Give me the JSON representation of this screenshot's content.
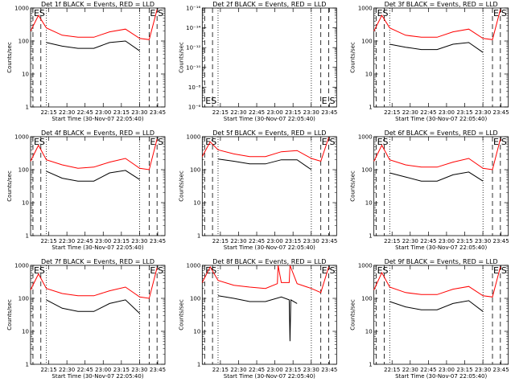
{
  "figure": {
    "xlabel": "Start Time (30-Nov-07 22:05:40)",
    "ylabel": "Counts/sec",
    "colors": {
      "events": "#000000",
      "lld": "#ff0000",
      "axes": "#000000",
      "background": "#ffffff"
    }
  },
  "chart_data": [
    {
      "type": "line",
      "title": "Det 1f BLACK = Events, RED = LLD",
      "scale": "log",
      "ylim": [
        1,
        1000
      ],
      "yticks": [
        "1",
        "10",
        "100",
        "1000"
      ],
      "xticks": [
        "22:15",
        "22:30",
        "22:45",
        "23:00",
        "23:15",
        "23:30",
        "23:45"
      ],
      "xlim": [
        22.1,
        23.8
      ],
      "dash_lines": [
        22.13,
        22.23,
        23.6,
        23.7
      ],
      "dot_lines": [
        22.3,
        23.48
      ],
      "markers": [
        {
          "label": "ES",
          "x": 22.13
        },
        {
          "label": "E",
          "x": 23.6
        },
        {
          "label": "S",
          "x": 23.7
        }
      ],
      "series": [
        {
          "name": "Events",
          "color": "#000000",
          "x": [
            22.3,
            22.5,
            22.7,
            22.9,
            23.1,
            23.3,
            23.48
          ],
          "values": [
            90,
            70,
            60,
            60,
            90,
            100,
            50
          ]
        },
        {
          "name": "LLD",
          "color": "#ff0000",
          "x": [
            22.1,
            22.2,
            22.3,
            22.5,
            22.7,
            22.9,
            23.1,
            23.3,
            23.48,
            23.6,
            23.7
          ],
          "values": [
            200,
            600,
            250,
            150,
            130,
            130,
            190,
            230,
            120,
            110,
            900
          ]
        }
      ]
    },
    {
      "type": "line",
      "title": "Det 2f BLACK = Events, RED = LLD",
      "scale": "log",
      "ylim": [
        1e-06,
        1e-16
      ],
      "yticks": [
        "10⁻⁶",
        "10⁻⁸",
        "10⁻¹⁰",
        "10⁻¹²",
        "10⁻¹⁴",
        "10⁻¹⁶"
      ],
      "xticks": [
        "22:15",
        "22:30",
        "22:45",
        "23:00",
        "23:15",
        "23:30",
        "23:45"
      ],
      "xlim": [
        22.1,
        23.8
      ],
      "dash_lines": [
        22.13,
        22.23,
        23.6,
        23.7
      ],
      "dot_lines": [
        22.3,
        23.48
      ],
      "markers": [
        {
          "label": "ES",
          "x": 22.13
        },
        {
          "label": "E",
          "x": 23.6
        },
        {
          "label": "S",
          "x": 23.7
        }
      ],
      "series": []
    },
    {
      "type": "line",
      "title": "Det 3f BLACK = Events, RED = LLD",
      "scale": "log",
      "ylim": [
        1,
        1000
      ],
      "yticks": [
        "1",
        "10",
        "100",
        "1000"
      ],
      "xticks": [
        "22:15",
        "22:30",
        "22:45",
        "23:00",
        "23:15",
        "23:30",
        "23:45"
      ],
      "xlim": [
        22.1,
        23.8
      ],
      "dash_lines": [
        22.13,
        22.23,
        23.6,
        23.7
      ],
      "dot_lines": [
        22.3,
        23.48
      ],
      "markers": [
        {
          "label": "ES",
          "x": 22.13
        },
        {
          "label": "E",
          "x": 23.6
        },
        {
          "label": "S",
          "x": 23.7
        }
      ],
      "series": [
        {
          "name": "Events",
          "color": "#000000",
          "x": [
            22.3,
            22.5,
            22.7,
            22.9,
            23.1,
            23.3,
            23.48
          ],
          "values": [
            80,
            65,
            55,
            55,
            80,
            90,
            45
          ]
        },
        {
          "name": "LLD",
          "color": "#ff0000",
          "x": [
            22.1,
            22.2,
            22.3,
            22.5,
            22.7,
            22.9,
            23.1,
            23.3,
            23.48,
            23.6,
            23.7
          ],
          "values": [
            200,
            600,
            250,
            150,
            130,
            130,
            190,
            230,
            120,
            110,
            900
          ]
        }
      ]
    },
    {
      "type": "line",
      "title": "Det 4f BLACK = Events, RED = LLD",
      "scale": "log",
      "ylim": [
        1,
        1000
      ],
      "yticks": [
        "1",
        "10",
        "100",
        "1000"
      ],
      "xticks": [
        "22:15",
        "22:30",
        "22:45",
        "23:00",
        "23:15",
        "23:30",
        "23:45"
      ],
      "xlim": [
        22.1,
        23.8
      ],
      "dash_lines": [
        22.13,
        22.23,
        23.6,
        23.7
      ],
      "dot_lines": [
        22.3,
        23.48
      ],
      "markers": [
        {
          "label": "ES",
          "x": 22.13
        },
        {
          "label": "E",
          "x": 23.6
        },
        {
          "label": "S",
          "x": 23.7
        }
      ],
      "series": [
        {
          "name": "Events",
          "color": "#000000",
          "x": [
            22.3,
            22.5,
            22.7,
            22.9,
            23.1,
            23.3,
            23.48
          ],
          "values": [
            90,
            55,
            45,
            45,
            80,
            95,
            50
          ]
        },
        {
          "name": "LLD",
          "color": "#ff0000",
          "x": [
            22.1,
            22.2,
            22.3,
            22.5,
            22.7,
            22.9,
            23.1,
            23.3,
            23.48,
            23.6,
            23.7
          ],
          "values": [
            180,
            550,
            200,
            140,
            110,
            120,
            170,
            220,
            110,
            100,
            850
          ]
        }
      ]
    },
    {
      "type": "line",
      "title": "Det 5f BLACK = Events, RED = LLD",
      "scale": "log",
      "ylim": [
        1,
        1000
      ],
      "yticks": [
        "1",
        "10",
        "100",
        "1000"
      ],
      "xticks": [
        "22:15",
        "22:30",
        "22:45",
        "23:00",
        "23:15",
        "23:30",
        "23:45"
      ],
      "xlim": [
        22.1,
        23.8
      ],
      "dash_lines": [
        22.13,
        22.23,
        23.6,
        23.7
      ],
      "dot_lines": [
        22.3,
        23.48
      ],
      "markers": [
        {
          "label": "ES",
          "x": 22.13
        },
        {
          "label": "E",
          "x": 23.6
        },
        {
          "label": "S",
          "x": 23.7
        }
      ],
      "series": [
        {
          "name": "Events",
          "color": "#000000",
          "x": [
            22.3,
            22.5,
            22.7,
            22.9,
            23.1,
            23.3,
            23.48
          ],
          "values": [
            210,
            180,
            150,
            150,
            200,
            200,
            100
          ]
        },
        {
          "name": "LLD",
          "color": "#ff0000",
          "x": [
            22.1,
            22.2,
            22.3,
            22.5,
            22.7,
            22.9,
            23.1,
            23.3,
            23.48,
            23.6,
            23.7
          ],
          "values": [
            250,
            700,
            400,
            300,
            250,
            250,
            350,
            380,
            220,
            180,
            950
          ]
        }
      ]
    },
    {
      "type": "line",
      "title": "Det 6f BLACK = Events, RED = LLD",
      "scale": "log",
      "ylim": [
        1,
        1000
      ],
      "yticks": [
        "1",
        "10",
        "100",
        "1000"
      ],
      "xticks": [
        "22:15",
        "22:30",
        "22:45",
        "23:00",
        "23:15",
        "23:30",
        "23:45"
      ],
      "xlim": [
        22.1,
        23.8
      ],
      "dash_lines": [
        22.13,
        22.23,
        23.6,
        23.7
      ],
      "dot_lines": [
        22.3,
        23.48
      ],
      "markers": [
        {
          "label": "ES",
          "x": 22.13
        },
        {
          "label": "E",
          "x": 23.6
        },
        {
          "label": "S",
          "x": 23.7
        }
      ],
      "series": [
        {
          "name": "Events",
          "color": "#000000",
          "x": [
            22.3,
            22.5,
            22.7,
            22.9,
            23.1,
            23.3,
            23.48
          ],
          "values": [
            80,
            60,
            45,
            45,
            70,
            85,
            45
          ]
        },
        {
          "name": "LLD",
          "color": "#ff0000",
          "x": [
            22.1,
            22.2,
            22.3,
            22.5,
            22.7,
            22.9,
            23.1,
            23.3,
            23.48,
            23.6,
            23.7
          ],
          "values": [
            180,
            550,
            200,
            140,
            120,
            120,
            170,
            220,
            110,
            100,
            850
          ]
        }
      ]
    },
    {
      "type": "line",
      "title": "Det 7f BLACK = Events, RED = LLD",
      "scale": "log",
      "ylim": [
        1,
        1000
      ],
      "yticks": [
        "1",
        "10",
        "100",
        "1000"
      ],
      "xticks": [
        "22:15",
        "22:30",
        "22:45",
        "23:00",
        "23:15",
        "23:30",
        "23:45"
      ],
      "xlim": [
        22.1,
        23.8
      ],
      "dash_lines": [
        22.13,
        22.23,
        23.6,
        23.7
      ],
      "dot_lines": [
        22.3,
        23.48
      ],
      "markers": [
        {
          "label": "ES",
          "x": 22.13
        },
        {
          "label": "E",
          "x": 23.6
        },
        {
          "label": "S",
          "x": 23.7
        }
      ],
      "series": [
        {
          "name": "Events",
          "color": "#000000",
          "x": [
            22.3,
            22.5,
            22.7,
            22.9,
            23.1,
            23.3,
            23.48
          ],
          "values": [
            90,
            50,
            40,
            40,
            70,
            90,
            35
          ]
        },
        {
          "name": "LLD",
          "color": "#ff0000",
          "x": [
            22.1,
            22.2,
            22.3,
            22.5,
            22.7,
            22.9,
            23.1,
            23.3,
            23.48,
            23.6,
            23.7
          ],
          "values": [
            180,
            550,
            200,
            140,
            120,
            120,
            170,
            220,
            110,
            100,
            850
          ]
        }
      ]
    },
    {
      "type": "line",
      "title": "Det 8f BLACK = Events, RED = LLD",
      "scale": "log",
      "ylim": [
        1,
        1000
      ],
      "yticks": [
        "1",
        "10",
        "100",
        "1000"
      ],
      "xticks": [
        "22:15",
        "22:30",
        "22:45",
        "23:00",
        "23:15",
        "23:30",
        "23:45"
      ],
      "xlim": [
        22.1,
        23.8
      ],
      "dash_lines": [
        22.13,
        22.23,
        23.6,
        23.7
      ],
      "dot_lines": [
        22.3,
        23.48
      ],
      "markers": [
        {
          "label": "ES",
          "x": 22.13
        },
        {
          "label": "E",
          "x": 23.6
        },
        {
          "label": "S",
          "x": 23.7
        }
      ],
      "series": [
        {
          "name": "Events",
          "color": "#000000",
          "x": [
            22.3,
            22.5,
            22.7,
            22.9,
            23.1,
            23.2,
            23.21,
            23.22,
            23.3
          ],
          "values": [
            120,
            100,
            80,
            80,
            110,
            90,
            5,
            90,
            70
          ]
        },
        {
          "name": "LLD",
          "color": "#ff0000",
          "x": [
            22.1,
            22.2,
            22.3,
            22.5,
            22.7,
            22.9,
            23.05,
            23.06,
            23.1,
            23.2,
            23.21,
            23.3,
            23.48,
            23.6,
            23.7
          ],
          "values": [
            300,
            900,
            350,
            250,
            220,
            200,
            280,
            1000,
            300,
            300,
            1000,
            280,
            200,
            150,
            900
          ]
        }
      ]
    },
    {
      "type": "line",
      "title": "Det 9f BLACK = Events, RED = LLD",
      "scale": "log",
      "ylim": [
        1,
        1000
      ],
      "yticks": [
        "1",
        "10",
        "100",
        "1000"
      ],
      "xticks": [
        "22:15",
        "22:30",
        "22:45",
        "23:00",
        "23:15",
        "23:30",
        "23:45"
      ],
      "xlim": [
        22.1,
        23.8
      ],
      "dash_lines": [
        22.13,
        22.23,
        23.6,
        23.7
      ],
      "dot_lines": [
        22.3,
        23.48
      ],
      "markers": [
        {
          "label": "ES",
          "x": 22.13
        },
        {
          "label": "E",
          "x": 23.6
        },
        {
          "label": "S",
          "x": 23.7
        }
      ],
      "series": [
        {
          "name": "Events",
          "color": "#000000",
          "x": [
            22.3,
            22.5,
            22.7,
            22.9,
            23.1,
            23.3,
            23.48
          ],
          "values": [
            80,
            55,
            45,
            45,
            70,
            85,
            40
          ]
        },
        {
          "name": "LLD",
          "color": "#ff0000",
          "x": [
            22.1,
            22.2,
            22.3,
            22.5,
            22.7,
            22.9,
            23.1,
            23.3,
            23.48,
            23.6,
            23.7
          ],
          "values": [
            180,
            600,
            220,
            150,
            130,
            130,
            190,
            230,
            120,
            110,
            900
          ]
        }
      ]
    }
  ]
}
